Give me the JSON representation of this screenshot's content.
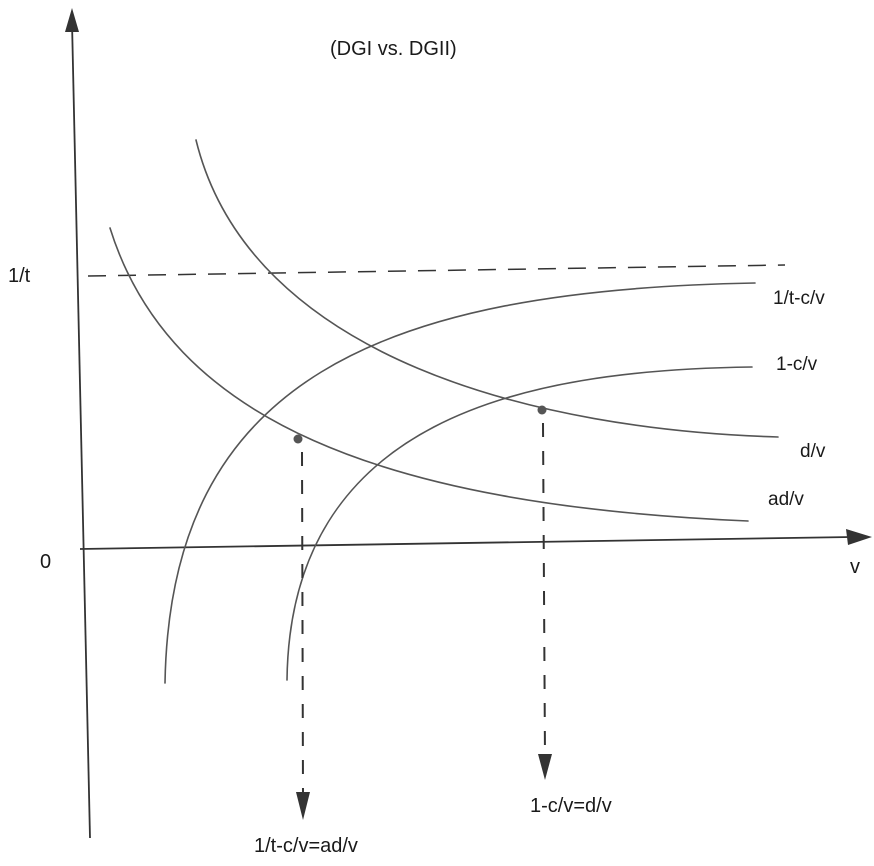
{
  "title": "(DGI vs. DGII)",
  "axes": {
    "y_tick_label": "1/t",
    "origin_label": "0",
    "x_axis_label": "v"
  },
  "curves": {
    "one_over_t_minus_c_over_v": "1/t-c/v",
    "one_minus_c_over_v": "1-c/v",
    "d_over_v": "d/v",
    "ad_over_v": "ad/v"
  },
  "intersections": {
    "left": "1/t-c/v=ad/v",
    "right": "1-c/v=d/v"
  },
  "colors": {
    "curve": "#555555",
    "axis": "#333333",
    "text": "#1a1a1a"
  }
}
